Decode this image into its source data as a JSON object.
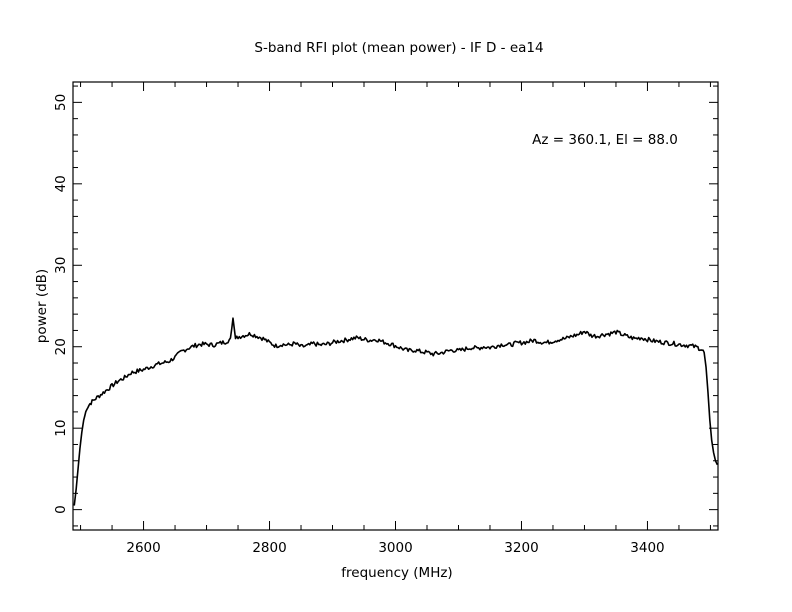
{
  "chart_data": {
    "type": "line",
    "title": "S-band RFI plot (mean power) - IF D - ea14",
    "xlabel": "frequency (MHz)",
    "ylabel": "power (dB)",
    "annotation": "Az = 360.1, El = 88.0",
    "xlim": [
      2488,
      3512
    ],
    "ylim": [
      -2.5,
      52.5
    ],
    "x_ticks": [
      2600,
      2800,
      3000,
      3200,
      3400
    ],
    "y_ticks": [
      0,
      10,
      20,
      30,
      40,
      50
    ],
    "x_tick_labels": [
      "2600",
      "2800",
      "3000",
      "3200",
      "3400"
    ],
    "y_tick_labels": [
      "0",
      "10",
      "20",
      "30",
      "40",
      "50"
    ],
    "grid": false,
    "series": [
      {
        "color": "#000000",
        "x": [
          2490,
          2493,
          2496,
          2499,
          2502,
          2505,
          2510,
          2515,
          2520,
          2530,
          2540,
          2550,
          2560,
          2570,
          2580,
          2590,
          2600,
          2610,
          2620,
          2630,
          2640,
          2650,
          2660,
          2670,
          2680,
          2690,
          2700,
          2710,
          2720,
          2730,
          2738,
          2742,
          2746,
          2750,
          2760,
          2770,
          2780,
          2790,
          2800,
          2810,
          2820,
          2830,
          2840,
          2850,
          2860,
          2870,
          2880,
          2890,
          2900,
          2910,
          2920,
          2930,
          2940,
          2950,
          2960,
          2970,
          2980,
          2990,
          3000,
          3010,
          3020,
          3030,
          3040,
          3050,
          3060,
          3070,
          3080,
          3090,
          3100,
          3110,
          3120,
          3130,
          3140,
          3150,
          3160,
          3170,
          3180,
          3190,
          3200,
          3210,
          3220,
          3230,
          3240,
          3250,
          3260,
          3270,
          3280,
          3290,
          3300,
          3310,
          3320,
          3330,
          3340,
          3350,
          3360,
          3370,
          3380,
          3390,
          3400,
          3410,
          3420,
          3430,
          3440,
          3450,
          3460,
          3470,
          3480,
          3485,
          3490,
          3493,
          3496,
          3499,
          3502,
          3505,
          3508,
          3511
        ],
        "y": [
          0.5,
          2.5,
          5.0,
          7.5,
          9.5,
          11.0,
          12.5,
          13.0,
          13.4,
          14.0,
          14.6,
          15.2,
          15.8,
          16.2,
          16.8,
          17.0,
          17.2,
          17.5,
          17.8,
          18.0,
          18.2,
          18.7,
          19.4,
          19.8,
          20.1,
          20.3,
          20.3,
          20.2,
          20.4,
          20.6,
          20.9,
          23.5,
          21.0,
          21.2,
          21.4,
          21.6,
          21.3,
          21.0,
          20.5,
          20.1,
          20.3,
          20.2,
          20.4,
          20.0,
          20.1,
          20.4,
          20.2,
          20.3,
          20.5,
          20.7,
          20.8,
          21.0,
          21.1,
          20.9,
          20.8,
          20.9,
          20.6,
          20.4,
          20.1,
          19.8,
          19.5,
          19.6,
          19.4,
          19.3,
          19.1,
          19.2,
          19.4,
          19.6,
          19.5,
          19.7,
          19.9,
          19.8,
          20.0,
          19.9,
          20.1,
          20.3,
          20.2,
          20.4,
          20.5,
          20.6,
          20.8,
          20.6,
          20.5,
          20.7,
          20.9,
          21.0,
          21.3,
          21.5,
          21.9,
          21.4,
          21.3,
          21.5,
          21.6,
          21.8,
          21.5,
          21.2,
          21.0,
          21.1,
          20.9,
          20.7,
          20.6,
          20.5,
          20.4,
          20.3,
          20.2,
          20.1,
          19.9,
          19.7,
          19.3,
          17.5,
          14.5,
          11.0,
          8.5,
          7.0,
          6.0,
          5.5
        ]
      }
    ]
  }
}
